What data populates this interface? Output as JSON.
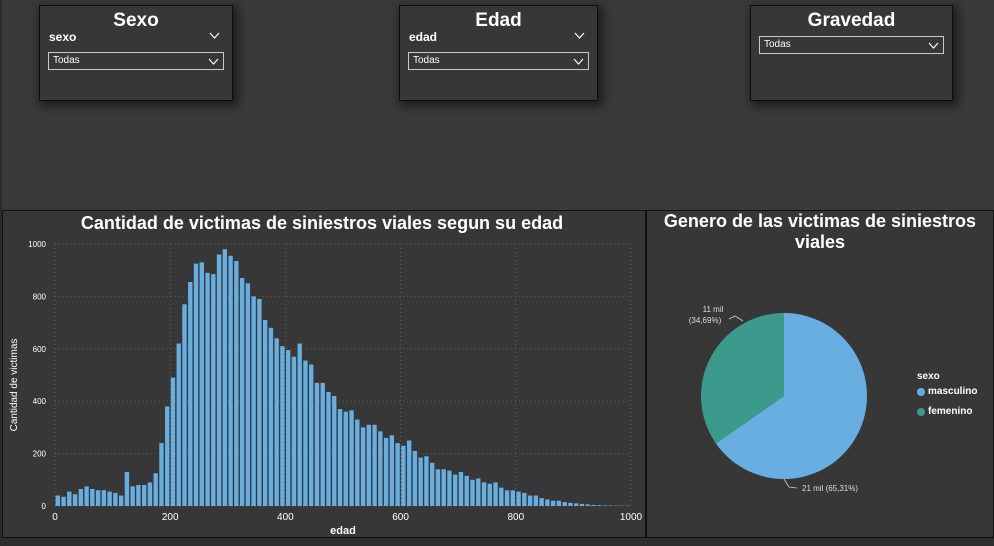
{
  "colors": {
    "bar": "#69aee0",
    "masculino": "#69aee0",
    "femenino": "#3c9a8d",
    "grid": "#5e5e5e"
  },
  "slicers": [
    {
      "title": "Sexo",
      "field": "sexo",
      "value": "Todas"
    },
    {
      "title": "Edad",
      "field": "edad",
      "value": "Todas"
    },
    {
      "title": "Gravedad",
      "value": "Todas"
    }
  ],
  "bar_chart": {
    "title": "Cantidad de victimas de siniestros viales segun su edad"
  },
  "pie_chart": {
    "title_line1": "Genero de las victimas de siniestros",
    "title_line2": "viales",
    "label_femenino_value": "11 mil",
    "label_femenino_pct": "(34,69%)",
    "label_masculino": "21 mil (65,31%)",
    "legend_title": "sexo",
    "legend_items": [
      "masculino",
      "femenino"
    ]
  },
  "chart_data": [
    {
      "type": "bar",
      "title": "Cantidad de victimas de siniestros viales segun su edad",
      "xlabel": "edad",
      "ylabel": "Cantidad de victimas",
      "xlim": [
        0,
        1000
      ],
      "ylim": [
        0,
        1000
      ],
      "xticks": [
        0,
        200,
        400,
        600,
        800,
        1000
      ],
      "yticks": [
        0,
        200,
        400,
        600,
        800,
        1000
      ],
      "grid": true,
      "bin_width": 10,
      "x": [
        0,
        10,
        20,
        30,
        40,
        50,
        60,
        70,
        80,
        90,
        100,
        110,
        120,
        130,
        140,
        150,
        160,
        170,
        180,
        190,
        200,
        210,
        220,
        230,
        240,
        250,
        260,
        270,
        280,
        290,
        300,
        310,
        320,
        330,
        340,
        350,
        360,
        370,
        380,
        390,
        400,
        410,
        420,
        430,
        440,
        450,
        460,
        470,
        480,
        490,
        500,
        510,
        520,
        530,
        540,
        550,
        560,
        570,
        580,
        590,
        600,
        610,
        620,
        630,
        640,
        650,
        660,
        670,
        680,
        690,
        700,
        710,
        720,
        730,
        740,
        750,
        760,
        770,
        780,
        790,
        800,
        810,
        820,
        830,
        840,
        850,
        860,
        870,
        880,
        890,
        900,
        910,
        920,
        930,
        940,
        950,
        960,
        970,
        980,
        990
      ],
      "values": [
        40,
        35,
        55,
        45,
        65,
        75,
        65,
        60,
        60,
        55,
        50,
        40,
        130,
        75,
        80,
        80,
        90,
        125,
        240,
        380,
        490,
        620,
        770,
        855,
        925,
        930,
        890,
        885,
        960,
        980,
        955,
        935,
        870,
        850,
        800,
        790,
        710,
        680,
        640,
        610,
        595,
        570,
        620,
        555,
        540,
        470,
        470,
        435,
        420,
        370,
        360,
        365,
        330,
        300,
        310,
        310,
        285,
        260,
        270,
        240,
        230,
        250,
        210,
        185,
        190,
        165,
        140,
        140,
        135,
        120,
        130,
        115,
        100,
        105,
        90,
        85,
        90,
        70,
        60,
        60,
        55,
        50,
        40,
        40,
        30,
        25,
        20,
        20,
        15,
        12,
        10,
        8,
        6,
        4,
        3,
        2,
        2,
        1,
        1,
        1
      ]
    },
    {
      "type": "pie",
      "title": "Genero de las victimas de siniestros viales",
      "legend_title": "sexo",
      "legend": "right",
      "slices": [
        {
          "name": "masculino",
          "label": "21 mil",
          "value": 65.31
        },
        {
          "name": "femenino",
          "label": "11 mil",
          "value": 34.69
        }
      ]
    }
  ]
}
